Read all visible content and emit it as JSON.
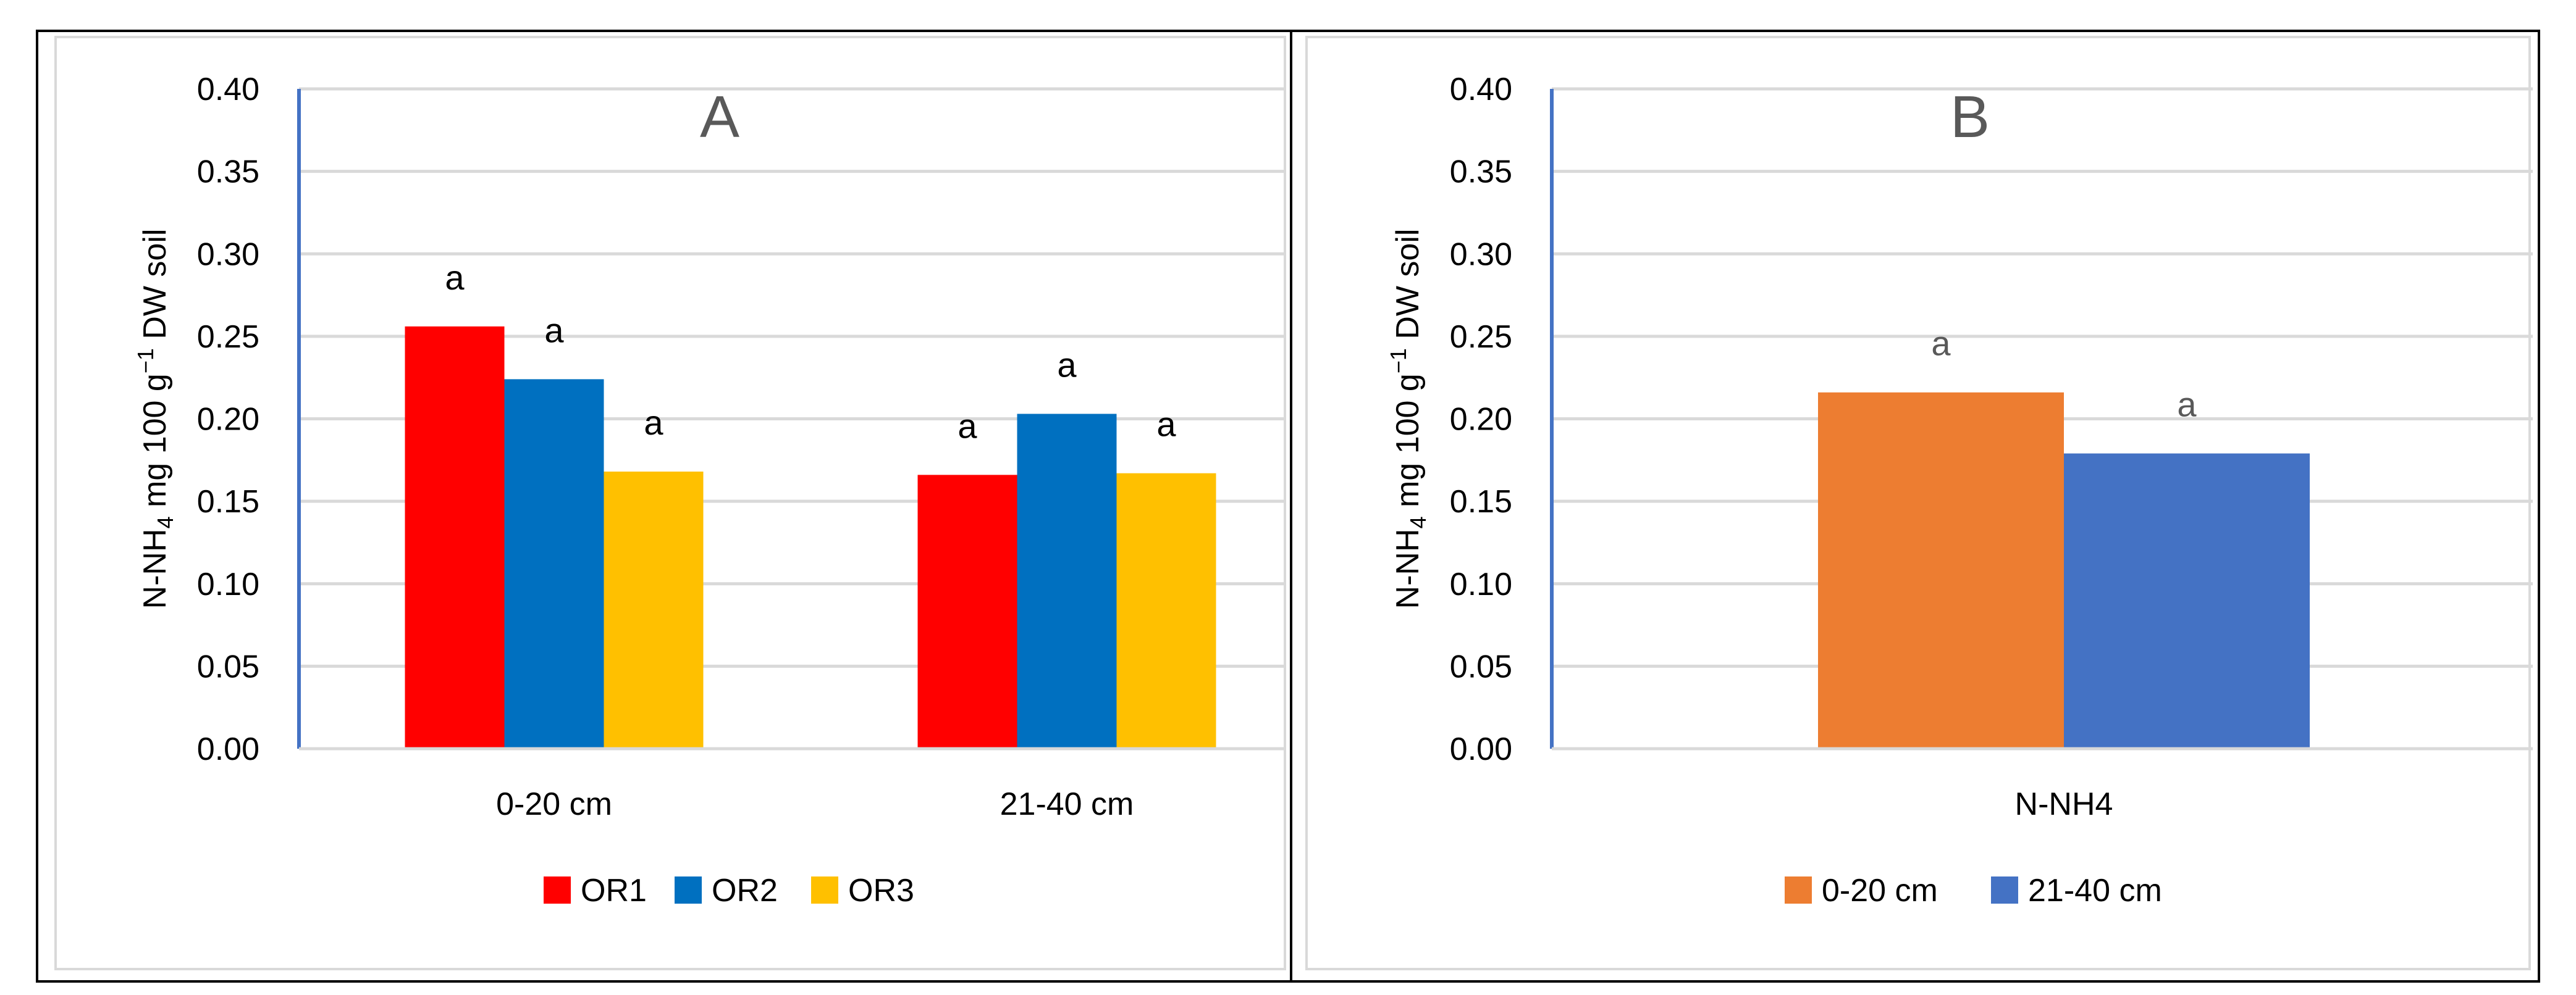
{
  "colors": {
    "OR1": "#ff0000",
    "OR2": "#0070c0",
    "OR3": "#ffc000",
    "depth_0_20": "#ed7d31",
    "depth_21_40": "#4472c4",
    "axis_line": "#4472c4",
    "grid": "#d9d9d9",
    "text": "#000000",
    "panel_label": "#595959"
  },
  "chart_data": [
    {
      "type": "bar",
      "panel_label": "A",
      "categories": [
        "0-20 cm",
        "21-40 cm"
      ],
      "series": [
        {
          "name": "OR1",
          "values": [
            0.256,
            0.166
          ],
          "labels": [
            "a",
            "a"
          ]
        },
        {
          "name": "OR2",
          "values": [
            0.224,
            0.203
          ],
          "labels": [
            "a",
            "a"
          ]
        },
        {
          "name": "OR3",
          "values": [
            0.168,
            0.167
          ],
          "labels": [
            "a",
            "a"
          ]
        }
      ],
      "ylabel_parts": {
        "main": "N-NH",
        "sub": "4",
        "mid": " mg 100 g",
        "sup": "−1",
        "end": " DW soil"
      },
      "ylim": [
        0,
        0.4
      ],
      "yticks": [
        "0.00",
        "0.05",
        "0.10",
        "0.15",
        "0.20",
        "0.25",
        "0.30",
        "0.35",
        "0.40"
      ],
      "grid": true,
      "legend": "bottom"
    },
    {
      "type": "bar",
      "panel_label": "B",
      "categories": [
        "N-NH4"
      ],
      "series": [
        {
          "name": "0-20 cm",
          "values": [
            0.216
          ],
          "labels": [
            "a"
          ]
        },
        {
          "name": "21-40 cm",
          "values": [
            0.179
          ],
          "labels": [
            "a"
          ]
        }
      ],
      "ylabel_parts": {
        "main": "N-NH",
        "sub": "4",
        "mid": " mg 100 g",
        "sup": "−1",
        "end": " DW soil"
      },
      "ylim": [
        0,
        0.4
      ],
      "yticks": [
        "0.00",
        "0.05",
        "0.10",
        "0.15",
        "0.20",
        "0.25",
        "0.30",
        "0.35",
        "0.40"
      ],
      "grid": true,
      "legend": "bottom"
    }
  ]
}
